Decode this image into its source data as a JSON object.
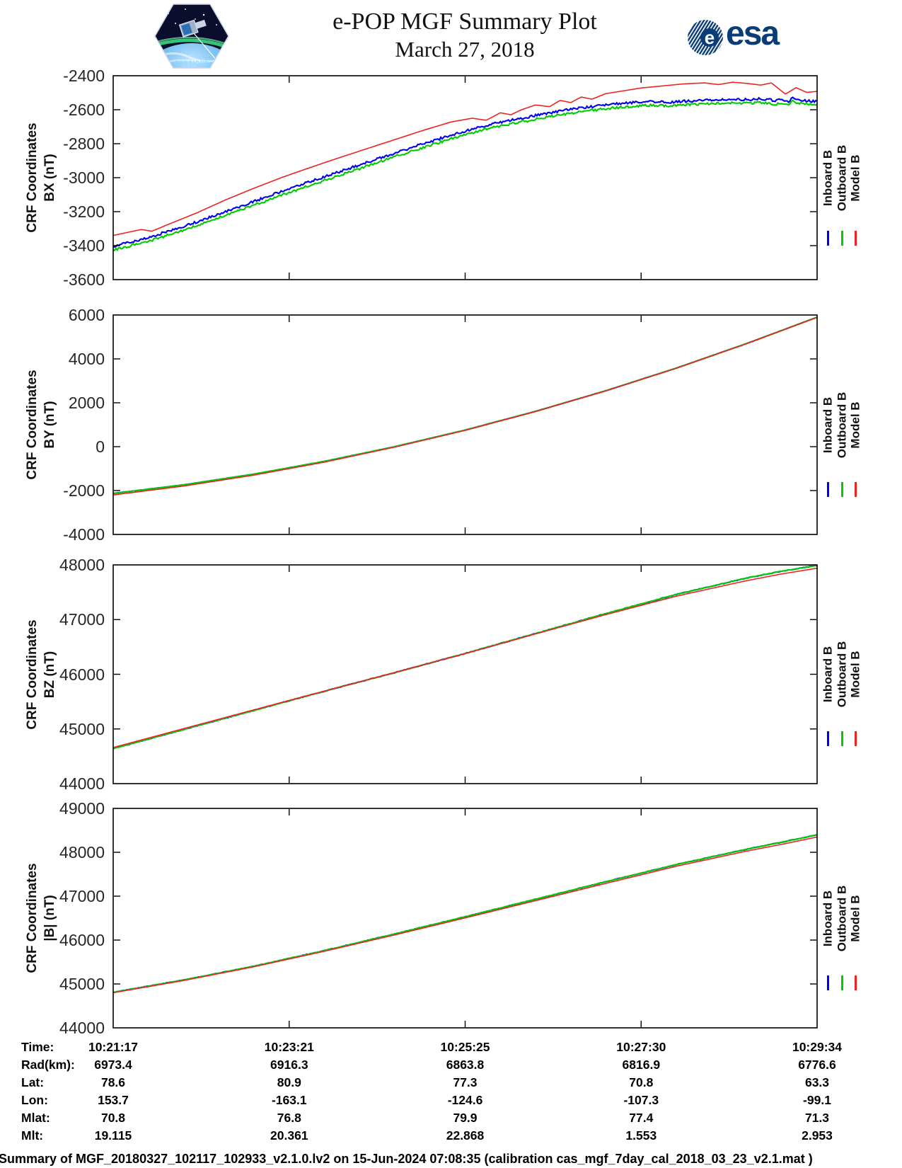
{
  "header": {
    "title": "e-POP MGF Summary Plot",
    "date": "March 27, 2018",
    "patch_label": "CASSIOPE",
    "esa_label": "esa"
  },
  "legend": {
    "entries": [
      {
        "label": "Inboard B",
        "color": "#0000EE"
      },
      {
        "label": "Outboard B",
        "color": "#00CC00"
      },
      {
        "label": "Model B",
        "color": "#EE2222"
      }
    ]
  },
  "chart_data": [
    {
      "type": "line",
      "ylabel": [
        "CRF Coordinates",
        "BX (nT)"
      ],
      "ylim": [
        -3600,
        -2400
      ],
      "yticks": [
        -2400,
        -2600,
        -2800,
        -3000,
        -3200,
        -3400,
        -3600
      ],
      "xtick_labels": [
        "10:21:17",
        "10:23:21",
        "10:25:25",
        "10:27:30",
        "10:29:34"
      ],
      "series": [
        {
          "name": "Inboard B",
          "color": "#0000EE",
          "noise": 7,
          "x": [
            0,
            0.05,
            0.1,
            0.15,
            0.2,
            0.25,
            0.3,
            0.35,
            0.4,
            0.45,
            0.5,
            0.54,
            0.58,
            0.62,
            0.66,
            0.7,
            0.73,
            0.76,
            0.79,
            0.82,
            0.85,
            0.88,
            0.9,
            0.92,
            0.94,
            0.95,
            0.96,
            0.965,
            0.98,
            1.0
          ],
          "values": [
            -3405,
            -3352,
            -3288,
            -3215,
            -3140,
            -3065,
            -2995,
            -2925,
            -2855,
            -2788,
            -2725,
            -2682,
            -2650,
            -2618,
            -2592,
            -2572,
            -2560,
            -2552,
            -2556,
            -2548,
            -2542,
            -2538,
            -2540,
            -2535,
            -2545,
            -2538,
            -2552,
            -2528,
            -2545,
            -2552
          ]
        },
        {
          "name": "Outboard B",
          "color": "#00CC00",
          "noise": 7,
          "x": [
            0,
            0.05,
            0.1,
            0.15,
            0.2,
            0.25,
            0.3,
            0.35,
            0.4,
            0.45,
            0.5,
            0.54,
            0.58,
            0.62,
            0.66,
            0.7,
            0.73,
            0.76,
            0.79,
            0.82,
            0.85,
            0.88,
            0.9,
            0.92,
            0.94,
            0.95,
            0.96,
            0.965,
            0.98,
            1.0
          ],
          "values": [
            -3427,
            -3374,
            -3310,
            -3237,
            -3162,
            -3087,
            -3017,
            -2947,
            -2877,
            -2810,
            -2747,
            -2704,
            -2672,
            -2640,
            -2614,
            -2594,
            -2582,
            -2574,
            -2578,
            -2570,
            -2564,
            -2560,
            -2562,
            -2557,
            -2567,
            -2560,
            -2574,
            -2550,
            -2567,
            -2574
          ]
        },
        {
          "name": "Model B",
          "color": "#EE2222",
          "noise": 0,
          "x": [
            0,
            0.025,
            0.04,
            0.055,
            0.08,
            0.12,
            0.16,
            0.2,
            0.24,
            0.28,
            0.32,
            0.36,
            0.4,
            0.44,
            0.48,
            0.51,
            0.53,
            0.55,
            0.565,
            0.58,
            0.6,
            0.62,
            0.635,
            0.65,
            0.665,
            0.68,
            0.7,
            0.72,
            0.75,
            0.78,
            0.81,
            0.84,
            0.86,
            0.88,
            0.9,
            0.92,
            0.935,
            0.955,
            0.97,
            0.985,
            1.0
          ],
          "values": [
            -3340,
            -3318,
            -3305,
            -3315,
            -3272,
            -3205,
            -3130,
            -3062,
            -2998,
            -2940,
            -2884,
            -2830,
            -2776,
            -2722,
            -2672,
            -2650,
            -2662,
            -2618,
            -2630,
            -2600,
            -2572,
            -2582,
            -2545,
            -2558,
            -2525,
            -2538,
            -2505,
            -2492,
            -2472,
            -2460,
            -2448,
            -2442,
            -2452,
            -2438,
            -2445,
            -2455,
            -2442,
            -2508,
            -2470,
            -2498,
            -2492
          ]
        }
      ]
    },
    {
      "type": "line",
      "ylabel": [
        "CRF Coordinates",
        "BY (nT)"
      ],
      "ylim": [
        -4000,
        6000
      ],
      "yticks": [
        6000,
        4000,
        2000,
        0,
        -2000,
        -4000
      ],
      "xtick_labels": [
        "10:21:17",
        "10:23:21",
        "10:25:25",
        "10:27:30",
        "10:29:34"
      ],
      "series": [
        {
          "name": "Inboard B",
          "color": "#0000EE",
          "noise": 4,
          "x": [
            0,
            0.1,
            0.2,
            0.3,
            0.4,
            0.5,
            0.6,
            0.7,
            0.8,
            0.9,
            1.0
          ],
          "values": [
            -2130,
            -1740,
            -1250,
            -670,
            0,
            755,
            1610,
            2550,
            3580,
            4700,
            5900
          ]
        },
        {
          "name": "Outboard B",
          "color": "#00CC00",
          "noise": 3,
          "x": [
            0,
            0.1,
            0.2,
            0.3,
            0.4,
            0.5,
            0.6,
            0.7,
            0.8,
            0.9,
            1.0
          ],
          "values": [
            -2130,
            -1740,
            -1250,
            -670,
            0,
            755,
            1610,
            2550,
            3580,
            4700,
            5900
          ]
        },
        {
          "name": "Model B",
          "color": "#EE2222",
          "noise": 0,
          "x": [
            0,
            0.1,
            0.2,
            0.3,
            0.4,
            0.5,
            0.6,
            0.7,
            0.8,
            0.9,
            1.0
          ],
          "values": [
            -2200,
            -1795,
            -1295,
            -705,
            -20,
            742,
            1602,
            2545,
            3578,
            4698,
            5890
          ]
        }
      ]
    },
    {
      "type": "line",
      "ylabel": [
        "CRF Coordinates",
        "BZ (nT)"
      ],
      "ylim": [
        44000,
        48000
      ],
      "yticks": [
        48000,
        47000,
        46000,
        45000,
        44000
      ],
      "xtick_labels": [
        "10:21:17",
        "10:23:21",
        "10:25:25",
        "10:27:30",
        "10:29:34"
      ],
      "series": [
        {
          "name": "Inboard B",
          "color": "#0000EE",
          "noise": 6,
          "x": [
            0,
            0.1,
            0.2,
            0.3,
            0.4,
            0.5,
            0.6,
            0.7,
            0.8,
            0.9,
            0.95,
            1.0
          ],
          "values": [
            44640,
            44990,
            45340,
            45690,
            46030,
            46380,
            46745,
            47110,
            47460,
            47760,
            47885,
            47990
          ]
        },
        {
          "name": "Outboard B",
          "color": "#00CC00",
          "noise": 4,
          "x": [
            0,
            0.1,
            0.2,
            0.3,
            0.4,
            0.5,
            0.6,
            0.7,
            0.8,
            0.9,
            0.95,
            1.0
          ],
          "values": [
            44640,
            44990,
            45340,
            45690,
            46030,
            46380,
            46745,
            47110,
            47460,
            47760,
            47885,
            47990
          ]
        },
        {
          "name": "Model B",
          "color": "#EE2222",
          "noise": 0,
          "x": [
            0,
            0.1,
            0.2,
            0.3,
            0.4,
            0.5,
            0.6,
            0.7,
            0.8,
            0.9,
            0.95,
            1.0
          ],
          "values": [
            44660,
            45005,
            45350,
            45692,
            46032,
            46378,
            46738,
            47092,
            47428,
            47712,
            47835,
            47940
          ]
        }
      ]
    },
    {
      "type": "line",
      "ylabel": [
        "CRF Coordinates",
        "|B| (nT)"
      ],
      "ylim": [
        44000,
        49000
      ],
      "yticks": [
        49000,
        48000,
        47000,
        46000,
        45000,
        44000
      ],
      "xtick_labels": [
        "10:21:17",
        "10:23:21",
        "10:25:25",
        "10:27:30",
        "10:29:34"
      ],
      "series": [
        {
          "name": "Inboard B",
          "color": "#0000EE",
          "noise": 6,
          "x": [
            0,
            0.1,
            0.2,
            0.3,
            0.4,
            0.5,
            0.6,
            0.7,
            0.8,
            0.9,
            0.95,
            1.0
          ],
          "values": [
            44810,
            45090,
            45405,
            45760,
            46140,
            46530,
            46930,
            47330,
            47720,
            48070,
            48230,
            48400
          ]
        },
        {
          "name": "Outboard B",
          "color": "#00CC00",
          "noise": 4,
          "x": [
            0,
            0.1,
            0.2,
            0.3,
            0.4,
            0.5,
            0.6,
            0.7,
            0.8,
            0.9,
            0.95,
            1.0
          ],
          "values": [
            44810,
            45090,
            45405,
            45760,
            46140,
            46530,
            46930,
            47330,
            47720,
            48070,
            48230,
            48400
          ]
        },
        {
          "name": "Model B",
          "color": "#EE2222",
          "noise": 0,
          "x": [
            0,
            0.1,
            0.2,
            0.3,
            0.4,
            0.5,
            0.6,
            0.7,
            0.8,
            0.9,
            0.95,
            1.0
          ],
          "values": [
            44800,
            45078,
            45392,
            45745,
            46118,
            46505,
            46898,
            47292,
            47682,
            48028,
            48182,
            48348
          ]
        }
      ]
    }
  ],
  "table": {
    "rows": [
      {
        "label": "Time:",
        "values": [
          "10:21:17",
          "10:23:21",
          "10:25:25",
          "10:27:30",
          "10:29:34"
        ]
      },
      {
        "label": "Rad(km):",
        "values": [
          "6973.4",
          "6916.3",
          "6863.8",
          "6816.9",
          "6776.6"
        ]
      },
      {
        "label": "Lat:",
        "values": [
          "78.6",
          "80.9",
          "77.3",
          "70.8",
          "63.3"
        ]
      },
      {
        "label": "Lon:",
        "values": [
          "153.7",
          "-163.1",
          "-124.6",
          "-107.3",
          "-99.1"
        ]
      },
      {
        "label": "Mlat:",
        "values": [
          "70.8",
          "76.8",
          "79.9",
          "77.4",
          "71.3"
        ]
      },
      {
        "label": "Mlt:",
        "values": [
          "19.115",
          "20.361",
          "22.868",
          "1.553",
          "2.953"
        ]
      }
    ]
  },
  "footer": "Summary of MGF_20180327_102117_102933_v2.1.0.lv2 on 15-Jun-2024 07:08:35 (calibration cas_mgf_7day_cal_2018_03_23_v2.1.mat )"
}
